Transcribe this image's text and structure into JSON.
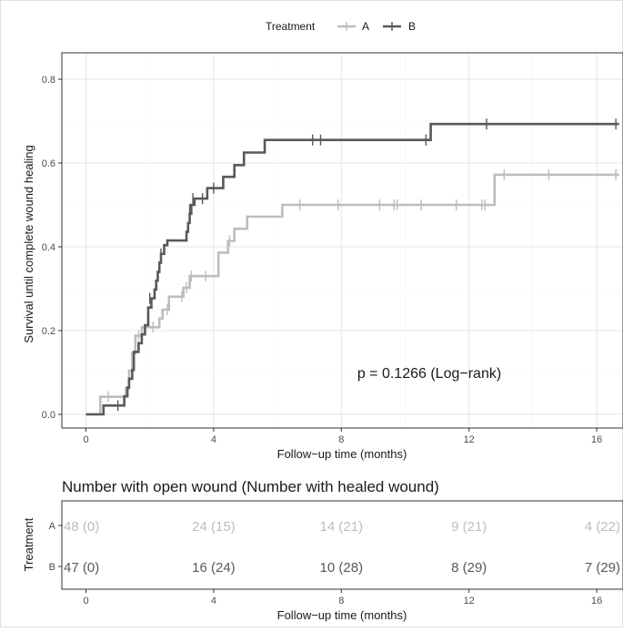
{
  "legend": {
    "title": "Treatment",
    "entries": [
      {
        "name": "A",
        "color": "#bdbdbd"
      },
      {
        "name": "B",
        "color": "#595959"
      }
    ],
    "position": "top"
  },
  "chart_data": [
    {
      "type": "line",
      "subtype": "step (Kaplan-Meier cumulative incidence)",
      "ylabel": "Survival until complete wound healing",
      "xlabel": "Follow−up time (months)",
      "xlim": [
        0,
        16.7
      ],
      "ylim": [
        0,
        0.8
      ],
      "xticks": [
        0,
        4,
        8,
        12,
        16
      ],
      "yticks": [
        0.0,
        0.2,
        0.4,
        0.6,
        0.8
      ],
      "xtick_labels": [
        "0",
        "4",
        "8",
        "12",
        "16"
      ],
      "ytick_labels": [
        "0.0",
        "0.2",
        "0.4",
        "0.6",
        "0.8"
      ],
      "grid": true,
      "annotation": "p = 0.1266 (Log−rank)",
      "series": [
        {
          "name": "A",
          "color": "#bdbdbd",
          "steps": [
            [
              0,
              0
            ],
            [
              0.45,
              0.042
            ],
            [
              1.25,
              0.062
            ],
            [
              1.35,
              0.104
            ],
            [
              1.45,
              0.146
            ],
            [
              1.55,
              0.188
            ],
            [
              1.75,
              0.208
            ],
            [
              2.3,
              0.229
            ],
            [
              2.4,
              0.25
            ],
            [
              2.6,
              0.281
            ],
            [
              3.05,
              0.302
            ],
            [
              3.25,
              0.33
            ],
            [
              4.15,
              0.386
            ],
            [
              4.45,
              0.414
            ],
            [
              4.65,
              0.443
            ],
            [
              5.05,
              0.472
            ],
            [
              6.15,
              0.5
            ],
            [
              12.8,
              0.572
            ],
            [
              16.7,
              0.572
            ]
          ],
          "censors": [
            [
              0.7,
              0.042
            ],
            [
              1.65,
              0.188
            ],
            [
              2.1,
              0.208
            ],
            [
              2.55,
              0.25
            ],
            [
              3.0,
              0.281
            ],
            [
              3.15,
              0.302
            ],
            [
              3.3,
              0.33
            ],
            [
              3.75,
              0.33
            ],
            [
              4.5,
              0.414
            ],
            [
              6.7,
              0.5
            ],
            [
              7.9,
              0.5
            ],
            [
              9.2,
              0.5
            ],
            [
              9.65,
              0.5
            ],
            [
              9.75,
              0.5
            ],
            [
              10.5,
              0.5
            ],
            [
              11.6,
              0.5
            ],
            [
              12.4,
              0.5
            ],
            [
              12.5,
              0.5
            ],
            [
              13.1,
              0.572
            ],
            [
              14.5,
              0.572
            ],
            [
              16.6,
              0.572
            ]
          ]
        },
        {
          "name": "B",
          "color": "#595959",
          "steps": [
            [
              0,
              0
            ],
            [
              0.55,
              0.021
            ],
            [
              1.2,
              0.043
            ],
            [
              1.3,
              0.064
            ],
            [
              1.35,
              0.085
            ],
            [
              1.45,
              0.106
            ],
            [
              1.5,
              0.149
            ],
            [
              1.65,
              0.17
            ],
            [
              1.75,
              0.191
            ],
            [
              1.85,
              0.213
            ],
            [
              1.95,
              0.255
            ],
            [
              2.05,
              0.277
            ],
            [
              2.15,
              0.298
            ],
            [
              2.2,
              0.319
            ],
            [
              2.25,
              0.34
            ],
            [
              2.3,
              0.362
            ],
            [
              2.35,
              0.383
            ],
            [
              2.45,
              0.404
            ],
            [
              2.55,
              0.415
            ],
            [
              3.15,
              0.436
            ],
            [
              3.2,
              0.457
            ],
            [
              3.25,
              0.479
            ],
            [
              3.3,
              0.5
            ],
            [
              3.4,
              0.515
            ],
            [
              3.8,
              0.54
            ],
            [
              4.3,
              0.567
            ],
            [
              4.65,
              0.595
            ],
            [
              4.95,
              0.625
            ],
            [
              5.6,
              0.655
            ],
            [
              10.8,
              0.693
            ],
            [
              16.7,
              0.693
            ]
          ],
          "censors": [
            [
              1.0,
              0.021
            ],
            [
              2.0,
              0.277
            ],
            [
              2.35,
              0.383
            ],
            [
              3.25,
              0.489
            ],
            [
              3.35,
              0.515
            ],
            [
              3.65,
              0.515
            ],
            [
              4.0,
              0.54
            ],
            [
              7.1,
              0.655
            ],
            [
              7.35,
              0.655
            ],
            [
              10.65,
              0.655
            ],
            [
              12.55,
              0.693
            ],
            [
              16.6,
              0.693
            ]
          ]
        }
      ]
    },
    {
      "type": "table",
      "title": "Number with open wound (Number with healed wound)",
      "ylabel": "Treatment",
      "xlabel": "Follow−up time (months)",
      "xticks": [
        0,
        4,
        8,
        12,
        16
      ],
      "xtick_labels": [
        "0",
        "4",
        "8",
        "12",
        "16"
      ],
      "rows": [
        {
          "name": "A",
          "color": "#bdbdbd",
          "cells": [
            "48 (0)",
            "24 (15)",
            "14 (21)",
            "9 (21)",
            "4 (22)"
          ]
        },
        {
          "name": "B",
          "color": "#595959",
          "cells": [
            "47 (0)",
            "16 (24)",
            "10 (28)",
            "8 (29)",
            "7 (29)"
          ]
        }
      ]
    }
  ]
}
